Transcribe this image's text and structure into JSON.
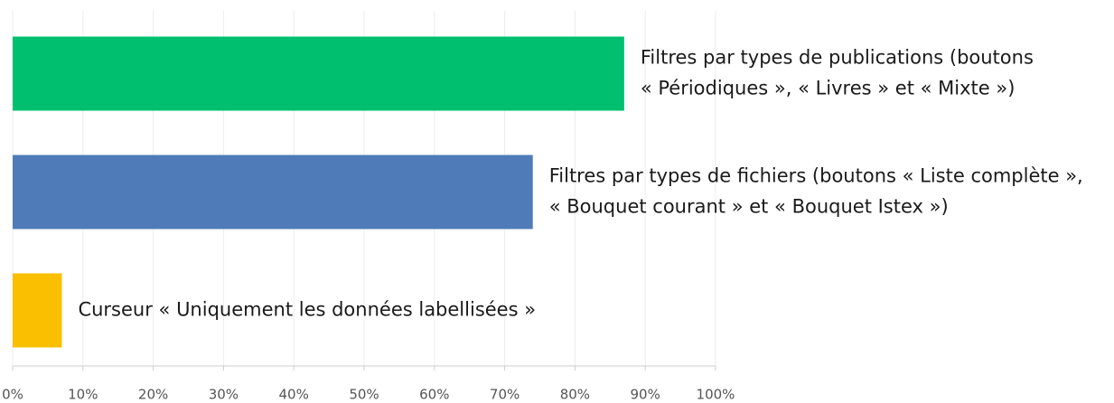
{
  "chart_data": {
    "type": "hbar",
    "categories": [
      [
        "Filtres par types de publications (boutons",
        "« Périodiques », « Livres » et « Mixte »)"
      ],
      [
        "Filtres par types de fichiers (boutons « Liste complète »,",
        "« Bouquet courant » et « Bouquet Istex »)"
      ],
      [
        "Curseur « Uniquement les données labellisées »"
      ]
    ],
    "series": [
      {
        "colors": [
          "#00c06f",
          "#4f7cb8",
          "#f9bf00"
        ],
        "values": [
          87,
          74,
          7
        ]
      }
    ],
    "xlim": [
      0,
      100
    ],
    "xticks": [
      {
        "value": 0,
        "label": "0%"
      },
      {
        "value": 10,
        "label": "10%"
      },
      {
        "value": 20,
        "label": "20%"
      },
      {
        "value": 30,
        "label": "30%"
      },
      {
        "value": 40,
        "label": "40%"
      },
      {
        "value": 50,
        "label": "50%"
      },
      {
        "value": 60,
        "label": "60%"
      },
      {
        "value": 70,
        "label": "70%"
      },
      {
        "value": 80,
        "label": "80%"
      },
      {
        "value": 90,
        "label": "90%"
      },
      {
        "value": 100,
        "label": "100%"
      }
    ],
    "grid": true
  }
}
